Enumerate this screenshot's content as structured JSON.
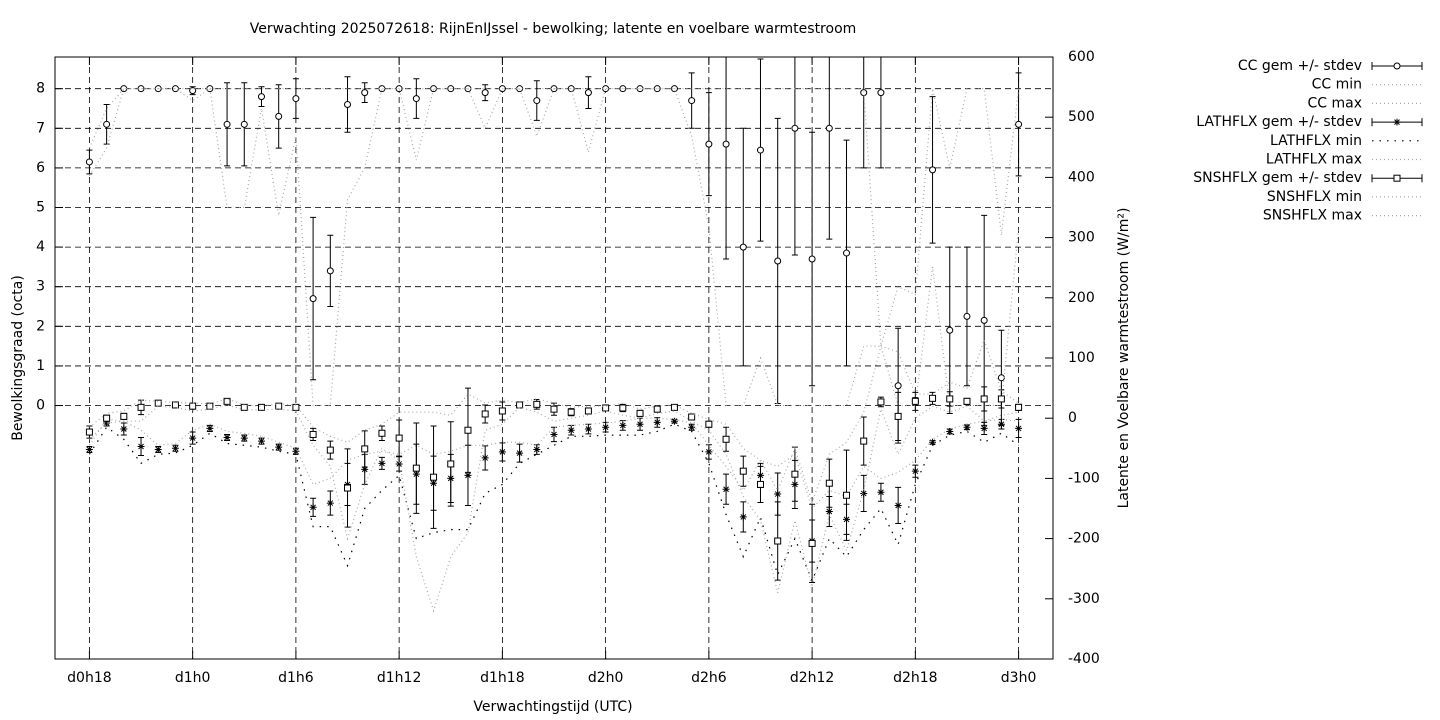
{
  "chart_data": {
    "type": "errorbar",
    "title": "Verwachting 2025072618: RijnEnIJssel - bewolking; latente en voelbare warmtestroom",
    "xlabel": "Verwachtingstijd (UTC)",
    "ylabel": "Bewolkingsgraad (octa)",
    "y2label": "Latente en Voelbare warmtestroom (W/m²)",
    "categories": [
      "d0h18",
      null,
      null,
      null,
      null,
      null,
      "d1h0",
      null,
      null,
      null,
      null,
      null,
      "d1h6",
      null,
      null,
      null,
      null,
      null,
      "d1h12",
      null,
      null,
      null,
      null,
      null,
      "d1h18",
      null,
      null,
      null,
      null,
      null,
      "d2h0",
      null,
      null,
      null,
      null,
      null,
      "d2h6",
      null,
      null,
      null,
      null,
      null,
      "d2h12",
      null,
      null,
      null,
      null,
      null,
      "d2h18",
      null,
      null,
      null,
      null,
      null,
      "d3h0"
    ],
    "ylim": [
      -6.4,
      8.8
    ],
    "yticks": [
      0,
      1,
      2,
      3,
      4,
      5,
      6,
      7,
      8
    ],
    "y2lim": [
      -400,
      600
    ],
    "y2ticks": [
      -400,
      -300,
      -200,
      -100,
      0,
      100,
      200,
      300,
      400,
      500,
      600
    ],
    "grid": true,
    "legend": "outside-top-right",
    "series": [
      {
        "name": "CC gem +/- stdev",
        "style": "errorbar",
        "marker": "circle",
        "color": "#000000",
        "axis": "y",
        "values": [
          6.15,
          7.1,
          8,
          8,
          8,
          8,
          7.95,
          8,
          7.1,
          7.1,
          7.8,
          7.3,
          7.75,
          2.7,
          3.4,
          7.6,
          7.9,
          8,
          8,
          7.75,
          8,
          8,
          8,
          7.9,
          8,
          8,
          7.7,
          8,
          8,
          7.9,
          8,
          8,
          8,
          8,
          8,
          7.7,
          6.6,
          6.6,
          4.0,
          6.45,
          3.65,
          7.0,
          3.7,
          7.0,
          3.85,
          7.9,
          7.9,
          0.5,
          0.1,
          5.95,
          1.9,
          2.25,
          2.15,
          0.7,
          7.1
        ],
        "errors": [
          0.3,
          0.5,
          0,
          0,
          0,
          0,
          0.1,
          0,
          1.05,
          1.05,
          0.25,
          0.8,
          0.5,
          2.05,
          0.9,
          0.7,
          0.25,
          0,
          0,
          0.5,
          0,
          0,
          0,
          0.2,
          0,
          0,
          0.5,
          0,
          0,
          0.4,
          0,
          0,
          0,
          0,
          0,
          0.7,
          1.3,
          2.9,
          3.0,
          2.3,
          3.6,
          3.2,
          3.2,
          2.8,
          2.85,
          1.9,
          1.9,
          1.45,
          0.1,
          1.85,
          2.1,
          1.75,
          2.65,
          1.2,
          1.3
        ]
      },
      {
        "name": "CC min",
        "style": "line",
        "dash": "1 3",
        "color": "#a8a8a8",
        "axis": "y",
        "values": [
          5.8,
          6.5,
          8,
          8,
          8,
          8,
          7.7,
          8,
          5.0,
          5.0,
          7.5,
          4.8,
          6.8,
          0,
          0,
          5.2,
          6,
          8,
          8,
          6.2,
          8,
          8,
          8,
          7,
          8,
          8,
          6.8,
          8,
          8,
          6.4,
          8,
          8,
          8,
          8,
          8,
          6.8,
          4.5,
          0,
          0,
          1.2,
          0,
          0,
          0,
          0,
          0,
          1.5,
          1.5,
          0,
          0,
          3.5,
          0,
          0,
          0,
          0,
          4.5
        ]
      },
      {
        "name": "CC max",
        "style": "line",
        "dash": "1 3",
        "color": "#a8a8a8",
        "axis": "y",
        "values": [
          6.5,
          7.5,
          8,
          8,
          8,
          8,
          8,
          8,
          8,
          8,
          8,
          8,
          8,
          8,
          8,
          8,
          8,
          8,
          8,
          8,
          8,
          8,
          8,
          8,
          8,
          8,
          8,
          8,
          8,
          8,
          8,
          8,
          8,
          8,
          8,
          8,
          8,
          8,
          8,
          8,
          8,
          8,
          8,
          8,
          8,
          8,
          1.5,
          3.0,
          2.8,
          8,
          6,
          8,
          8,
          4.3,
          8
        ]
      },
      {
        "name": "LATHFLX gem +/- stdev",
        "style": "errorbar",
        "marker": "star",
        "color": "#000000",
        "axis": "y2",
        "values": [
          -52,
          -8,
          -18,
          -47,
          -52,
          -50,
          -33,
          -17,
          -32,
          -33,
          -38,
          -48,
          -55,
          -148,
          -141,
          -110,
          -85,
          -75,
          -76,
          -93,
          -108,
          -100,
          -95,
          -66,
          -56,
          -58,
          -52,
          -27,
          -20,
          -18,
          -15,
          -12,
          -10,
          -7,
          -5,
          -15,
          -56,
          -118,
          -164,
          -95,
          -126,
          -110,
          -204,
          -155,
          -168,
          -125,
          -123,
          -145,
          -88,
          -40,
          -22,
          -15,
          -17,
          -10,
          -17
        ],
        "errors": [
          5,
          5,
          10,
          15,
          5,
          5,
          10,
          5,
          5,
          5,
          5,
          5,
          5,
          15,
          20,
          35,
          25,
          10,
          12,
          50,
          45,
          40,
          50,
          20,
          15,
          15,
          8,
          12,
          8,
          8,
          8,
          8,
          10,
          8,
          3,
          5,
          12,
          25,
          25,
          20,
          35,
          40,
          35,
          25,
          25,
          30,
          15,
          30,
          10,
          3,
          4,
          4,
          10,
          8,
          15
        ]
      },
      {
        "name": "LATHFLX min",
        "style": "line",
        "dash": "1.5 6",
        "color": "#000000",
        "axis": "y2",
        "values": [
          -60,
          -15,
          -35,
          -75,
          -60,
          -58,
          -45,
          -25,
          -42,
          -45,
          -48,
          -55,
          -60,
          -180,
          -180,
          -245,
          -150,
          -120,
          -95,
          -200,
          -190,
          -185,
          -185,
          -125,
          -110,
          -75,
          -60,
          -45,
          -30,
          -30,
          -28,
          -28,
          -28,
          -22,
          -10,
          -22,
          -75,
          -160,
          -230,
          -165,
          -260,
          -200,
          -270,
          -200,
          -230,
          -185,
          -150,
          -210,
          -110,
          -45,
          -28,
          -22,
          -40,
          -25,
          -45
        ]
      },
      {
        "name": "LATHFLX max",
        "style": "line",
        "dash": "1 3",
        "color": "#a8a8a8",
        "axis": "y2",
        "values": [
          -45,
          -2,
          -5,
          -20,
          -45,
          -42,
          -20,
          -10,
          -22,
          -25,
          -30,
          -40,
          -50,
          -110,
          -100,
          -70,
          -60,
          -55,
          -60,
          -45,
          -60,
          -55,
          -45,
          -45,
          -40,
          -40,
          -45,
          -15,
          -12,
          -10,
          -8,
          -5,
          0,
          0,
          -2,
          -8,
          -45,
          -80,
          -120,
          -70,
          -80,
          -60,
          -150,
          -120,
          -130,
          -80,
          -100,
          -90,
          -70,
          -35,
          -18,
          -10,
          -5,
          -2,
          -5
        ]
      },
      {
        "name": "SNSHFLX gem +/- stdev",
        "style": "errorbar",
        "marker": "square",
        "color": "#000000",
        "axis": "y2",
        "values": [
          -23,
          0,
          3,
          18,
          25,
          22,
          20,
          20,
          28,
          18,
          18,
          20,
          18,
          -27,
          -53,
          -116,
          -51,
          -25,
          -33,
          -83,
          -98,
          -76,
          -20,
          7,
          12,
          22,
          23,
          15,
          10,
          12,
          17,
          17,
          8,
          15,
          18,
          2,
          -10,
          -35,
          -88,
          -110,
          -204,
          -93,
          -208,
          -108,
          -128,
          -38,
          27,
          3,
          28,
          33,
          32,
          28,
          32,
          32,
          18
        ],
        "errors": [
          10,
          5,
          5,
          12,
          3,
          3,
          5,
          3,
          3,
          3,
          2,
          3,
          3,
          10,
          15,
          65,
          30,
          12,
          30,
          75,
          85,
          70,
          70,
          15,
          15,
          3,
          8,
          10,
          6,
          5,
          3,
          6,
          5,
          5,
          3,
          3,
          5,
          20,
          25,
          30,
          65,
          45,
          65,
          40,
          75,
          40,
          8,
          40,
          15,
          10,
          12,
          5,
          20,
          15,
          5
        ]
      },
      {
        "name": "SNSHFLX min",
        "style": "line",
        "dash": "1 3",
        "color": "#a8a8a8",
        "axis": "y2",
        "values": [
          -35,
          -8,
          -5,
          -5,
          20,
          18,
          12,
          15,
          22,
          14,
          14,
          15,
          12,
          -45,
          -80,
          -200,
          -110,
          -50,
          -70,
          -230,
          -320,
          -230,
          -190,
          -20,
          -10,
          18,
          10,
          -5,
          0,
          5,
          12,
          5,
          0,
          8,
          12,
          -5,
          -20,
          -60,
          -130,
          -170,
          -290,
          -170,
          -280,
          -160,
          -220,
          -120,
          15,
          -60,
          0,
          20,
          10,
          20,
          -5,
          5,
          10
        ]
      },
      {
        "name": "SNSHFLX max",
        "style": "line",
        "dash": "1 3",
        "color": "#a8a8a8",
        "axis": "y2",
        "values": [
          -15,
          8,
          12,
          30,
          28,
          26,
          25,
          24,
          32,
          22,
          20,
          24,
          22,
          -15,
          -30,
          -40,
          -20,
          -10,
          10,
          10,
          10,
          5,
          40,
          25,
          30,
          26,
          32,
          25,
          18,
          20,
          20,
          25,
          15,
          20,
          22,
          8,
          -2,
          -10,
          -50,
          -70,
          -120,
          -50,
          -140,
          -60,
          -40,
          10,
          120,
          110,
          40,
          40,
          60,
          50,
          130,
          45,
          25
        ]
      }
    ]
  }
}
